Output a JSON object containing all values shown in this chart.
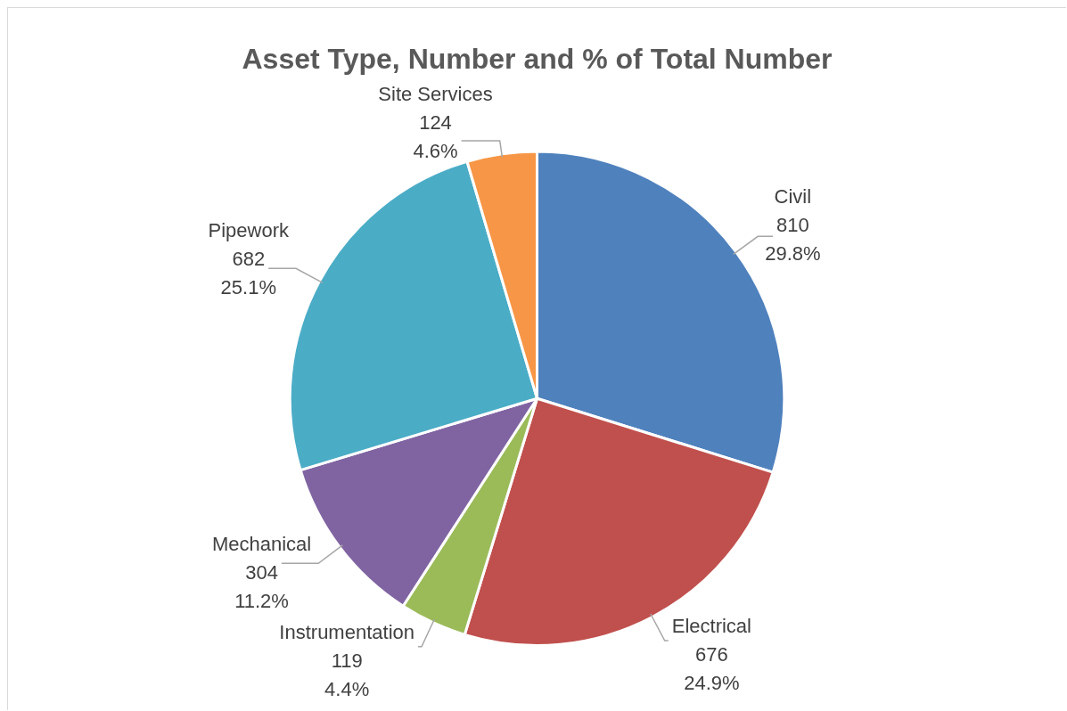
{
  "chart_data": {
    "type": "pie",
    "title": "Asset Type, Number and % of Total Number",
    "categories": [
      "Civil",
      "Electrical",
      "Instrumentation",
      "Mechanical",
      "Pipework",
      "Site Services"
    ],
    "values": [
      810,
      676,
      119,
      304,
      682,
      124
    ],
    "value_labels": [
      "810\n29.8%",
      "676\n24.9%",
      "119\n4.4%",
      "304\n11.2%",
      "682\n25.1%",
      "124\n4.6%"
    ],
    "colors": [
      "#4f81bd",
      "#c0504d",
      "#9bbb59",
      "#8064a2",
      "#4bacc6",
      "#f79646"
    ],
    "legend": false
  }
}
